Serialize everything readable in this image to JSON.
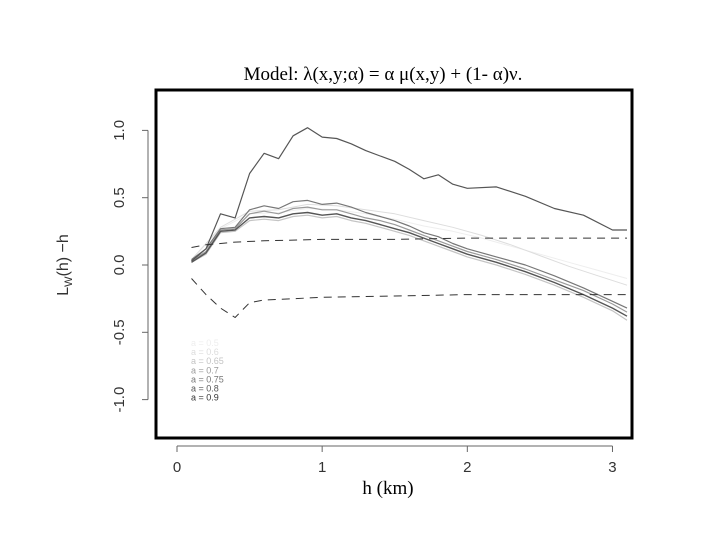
{
  "chart_data": {
    "type": "line",
    "title": "Model: λ(x,y;α) = α μ(x,y) + (1- α)ν.",
    "xlabel": "h (km)",
    "ylabel_main": "L",
    "ylabel_sub": "W",
    "ylabel_rest": "(h) −h",
    "xlim": [
      0,
      3.1
    ],
    "ylim": [
      -1.3,
      1.3
    ],
    "xticks": [
      {
        "value": 0,
        "label": "0"
      },
      {
        "value": 1,
        "label": "1"
      },
      {
        "value": 2,
        "label": "2"
      },
      {
        "value": 3,
        "label": "3"
      }
    ],
    "yticks": [
      {
        "value": 1.0,
        "label": "1.0"
      },
      {
        "value": 0.5,
        "label": "0.5"
      },
      {
        "value": 0.0,
        "label": "0.0"
      },
      {
        "value": -0.5,
        "label": "-0.5"
      },
      {
        "value": -1.0,
        "label": "-1.0"
      }
    ],
    "legend_position": "bottom-left",
    "legend": [
      {
        "label": "a = 0.5",
        "color": "#eeeeee"
      },
      {
        "label": "a = 0.6",
        "color": "#dddddd"
      },
      {
        "label": "a = 0.65",
        "color": "#c4c4c4"
      },
      {
        "label": "a = 0.7",
        "color": "#9a9a9a"
      },
      {
        "label": "a = 0.75",
        "color": "#777777"
      },
      {
        "label": "a = 0.8",
        "color": "#555555"
      },
      {
        "label": "a = 0.9",
        "color": "#333333"
      }
    ],
    "series": [
      {
        "color": "#555555",
        "width": 1.2,
        "dash": "",
        "x": [
          0.1,
          0.2,
          0.3,
          0.4,
          0.5,
          0.6,
          0.7,
          0.8,
          0.9,
          1.0,
          1.1,
          1.2,
          1.3,
          1.4,
          1.5,
          1.6,
          1.7,
          1.8,
          1.9,
          2.0,
          2.2,
          2.4,
          2.6,
          2.8,
          3.0,
          3.1
        ],
        "y": [
          0.03,
          0.12,
          0.38,
          0.35,
          0.68,
          0.83,
          0.79,
          0.96,
          1.02,
          0.95,
          0.94,
          0.9,
          0.85,
          0.81,
          0.77,
          0.71,
          0.64,
          0.67,
          0.6,
          0.57,
          0.58,
          0.51,
          0.42,
          0.37,
          0.26,
          0.26
        ]
      },
      {
        "color": "#777777",
        "width": 1.2,
        "dash": "",
        "x": [
          0.1,
          0.2,
          0.3,
          0.4,
          0.5,
          0.6,
          0.7,
          0.8,
          0.9,
          1.0,
          1.1,
          1.2,
          1.3,
          1.4,
          1.5,
          1.6,
          1.7,
          1.8,
          1.9,
          2.0,
          2.2,
          2.4,
          2.6,
          2.8,
          3.0,
          3.1
        ],
        "y": [
          0.04,
          0.12,
          0.27,
          0.28,
          0.41,
          0.44,
          0.42,
          0.47,
          0.48,
          0.45,
          0.46,
          0.43,
          0.39,
          0.36,
          0.33,
          0.29,
          0.24,
          0.21,
          0.16,
          0.12,
          0.06,
          0.0,
          -0.08,
          -0.17,
          -0.27,
          -0.32
        ]
      },
      {
        "color": "#9a9a9a",
        "width": 1.2,
        "dash": "",
        "x": [
          0.1,
          0.2,
          0.3,
          0.4,
          0.5,
          0.6,
          0.7,
          0.8,
          0.9,
          1.0,
          1.1,
          1.2,
          1.3,
          1.4,
          1.5,
          1.6,
          1.7,
          1.8,
          1.9,
          2.0,
          2.2,
          2.4,
          2.6,
          2.8,
          3.0,
          3.1
        ],
        "y": [
          0.03,
          0.1,
          0.26,
          0.27,
          0.38,
          0.4,
          0.38,
          0.42,
          0.43,
          0.41,
          0.41,
          0.38,
          0.35,
          0.33,
          0.3,
          0.26,
          0.22,
          0.18,
          0.14,
          0.1,
          0.04,
          -0.03,
          -0.11,
          -0.19,
          -0.29,
          -0.35
        ]
      },
      {
        "color": "#555555",
        "width": 1.4,
        "dash": "",
        "x": [
          0.1,
          0.2,
          0.3,
          0.4,
          0.5,
          0.6,
          0.7,
          0.8,
          0.9,
          1.0,
          1.1,
          1.2,
          1.3,
          1.4,
          1.5,
          1.6,
          1.7,
          1.8,
          1.9,
          2.0,
          2.2,
          2.4,
          2.6,
          2.8,
          3.0,
          3.1
        ],
        "y": [
          0.02,
          0.09,
          0.25,
          0.26,
          0.35,
          0.36,
          0.35,
          0.38,
          0.39,
          0.37,
          0.38,
          0.35,
          0.33,
          0.3,
          0.27,
          0.24,
          0.2,
          0.16,
          0.12,
          0.08,
          0.02,
          -0.05,
          -0.13,
          -0.22,
          -0.32,
          -0.38
        ]
      },
      {
        "color": "#c4c4c4",
        "width": 1.2,
        "dash": "",
        "x": [
          0.1,
          0.2,
          0.3,
          0.4,
          0.5,
          0.6,
          0.7,
          0.8,
          0.9,
          1.0,
          1.1,
          1.2,
          1.3,
          1.4,
          1.5,
          1.6,
          1.7,
          1.8,
          1.9,
          2.0,
          2.2,
          2.4,
          2.6,
          2.8,
          3.0,
          3.1
        ],
        "y": [
          0.02,
          0.08,
          0.24,
          0.25,
          0.33,
          0.34,
          0.33,
          0.36,
          0.37,
          0.35,
          0.36,
          0.33,
          0.31,
          0.28,
          0.25,
          0.22,
          0.18,
          0.14,
          0.1,
          0.06,
          0.0,
          -0.07,
          -0.15,
          -0.24,
          -0.34,
          -0.41
        ]
      },
      {
        "color": "#dddddd",
        "width": 1.0,
        "dash": "",
        "x": [
          0.1,
          0.3,
          0.5,
          0.7,
          0.9,
          1.1,
          1.3,
          1.5,
          1.7,
          1.9,
          2.1,
          2.3,
          2.5,
          2.7,
          2.9,
          3.1
        ],
        "y": [
          0.04,
          0.28,
          0.4,
          0.41,
          0.45,
          0.44,
          0.41,
          0.38,
          0.33,
          0.28,
          0.22,
          0.15,
          0.07,
          -0.01,
          -0.08,
          -0.15
        ]
      },
      {
        "color": "#eeeeee",
        "width": 1.0,
        "dash": "",
        "x": [
          0.1,
          0.3,
          0.5,
          0.7,
          0.9,
          1.1,
          1.3,
          1.5,
          1.7,
          1.9,
          2.1,
          2.3,
          2.5,
          2.7,
          2.9,
          3.1
        ],
        "y": [
          0.04,
          0.27,
          0.38,
          0.39,
          0.42,
          0.41,
          0.38,
          0.34,
          0.29,
          0.25,
          0.2,
          0.14,
          0.08,
          0.02,
          -0.04,
          -0.1
        ]
      },
      {
        "color": "#333333",
        "width": 1.0,
        "dash": "8,6",
        "x": [
          0.1,
          0.2,
          0.4,
          0.6,
          1.0,
          1.5,
          2.0,
          2.5,
          3.0,
          3.1
        ],
        "y": [
          0.13,
          0.15,
          0.17,
          0.18,
          0.19,
          0.19,
          0.2,
          0.2,
          0.2,
          0.2
        ]
      },
      {
        "color": "#333333",
        "width": 1.0,
        "dash": "8,6",
        "x": [
          0.1,
          0.2,
          0.3,
          0.4,
          0.5,
          0.6,
          0.8,
          1.0,
          1.5,
          2.0,
          2.5,
          3.0,
          3.1
        ],
        "y": [
          -0.1,
          -0.22,
          -0.32,
          -0.39,
          -0.28,
          -0.26,
          -0.25,
          -0.24,
          -0.23,
          -0.22,
          -0.22,
          -0.22,
          -0.22
        ]
      }
    ]
  }
}
